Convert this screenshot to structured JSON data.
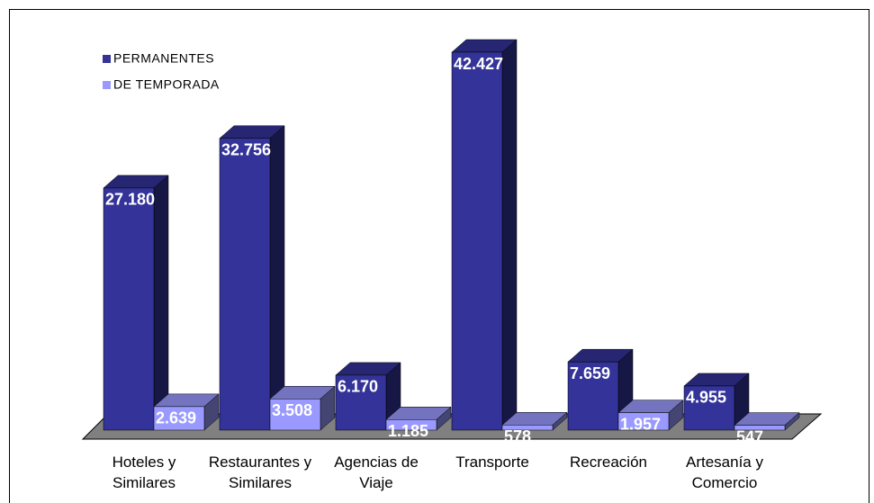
{
  "chart_data": {
    "type": "bar3d",
    "categories": [
      "Hoteles y Similares",
      "Restaurantes y Similares",
      "Agencias de Viaje",
      "Transporte",
      "Recreación",
      "Artesanía y Comercio"
    ],
    "series": [
      {
        "name": "PERMANENTES",
        "color": "#333399",
        "values": [
          27180,
          32756,
          6170,
          42427,
          7659,
          4955
        ],
        "value_labels": [
          "27.180",
          "32.756",
          "6.170",
          "42.427",
          "7.659",
          "4.955"
        ]
      },
      {
        "name": "DE TEMPORADA",
        "color": "#9999ff",
        "values": [
          2639,
          3508,
          1185,
          578,
          1957,
          547
        ],
        "value_labels": [
          "2.639",
          "3.508",
          "1.185",
          "578",
          "1.957",
          "547"
        ]
      }
    ]
  }
}
